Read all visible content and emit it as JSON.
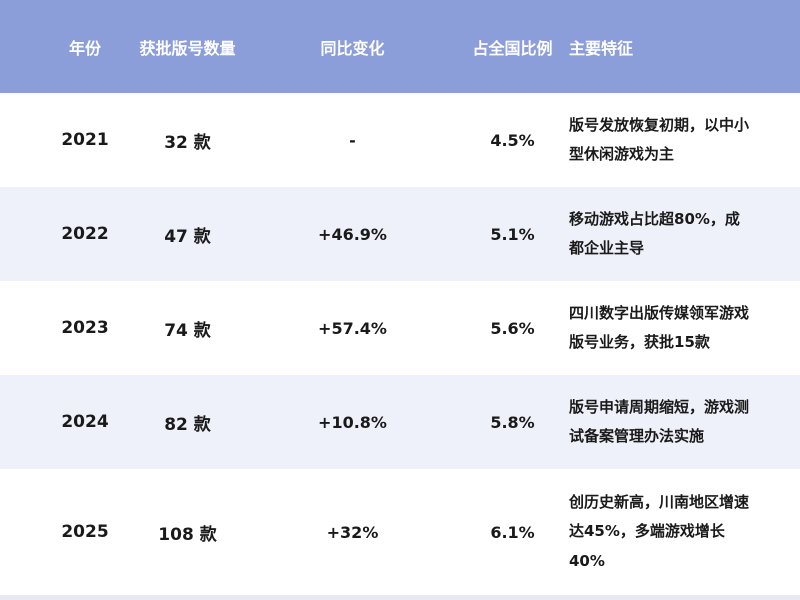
{
  "colors": {
    "header_bg": "#8C9ED9",
    "header_text": "#FFFFFF",
    "row_bg": "#FFFFFF",
    "row_alt_bg": "#EEF1F9",
    "body_text": "#1A1A1A"
  },
  "table": {
    "columns": [
      "年份",
      "获批版号数量",
      "同比变化",
      "占全国比例",
      "主要特征"
    ],
    "rows": [
      {
        "year": "2021",
        "count": "32 款",
        "yoy": "-",
        "share": "4.5%",
        "features": "版号发放恢复初期，以中小型休闲游戏为主"
      },
      {
        "year": "2022",
        "count": "47 款",
        "yoy": "+46.9%",
        "share": "5.1%",
        "features": "移动游戏占比超80%，成都企业主导"
      },
      {
        "year": "2023",
        "count": "74 款",
        "yoy": "+57.4%",
        "share": "5.6%",
        "features": "四川数字出版传媒领军游戏版号业务，获批15款"
      },
      {
        "year": "2024",
        "count": "82 款",
        "yoy": "+10.8%",
        "share": "5.8%",
        "features": "版号申请周期缩短，游戏测试备案管理办法实施"
      },
      {
        "year": "2025",
        "count": "108 款",
        "yoy": "+32%",
        "share": "6.1%",
        "features": "创历史新高，川南地区增速达45%，多端游戏增长40%"
      }
    ]
  },
  "chart_data": {
    "type": "table",
    "title": "",
    "columns": [
      "年份",
      "获批版号数量",
      "同比变化",
      "占全国比例",
      "主要特征"
    ],
    "rows": [
      [
        "2021",
        "32 款",
        "-",
        "4.5%",
        "版号发放恢复初期，以中小型休闲游戏为主"
      ],
      [
        "2022",
        "47 款",
        "+46.9%",
        "5.1%",
        "移动游戏占比超80%，成都企业主导"
      ],
      [
        "2023",
        "74 款",
        "+57.4%",
        "5.6%",
        "四川数字出版传媒领军游戏版号业务，获批15款"
      ],
      [
        "2024",
        "82 款",
        "+10.8%",
        "5.8%",
        "版号申请周期缩短，游戏测试备案管理办法实施"
      ],
      [
        "2025",
        "108 款",
        "+32%",
        "6.1%",
        "创历史新高，川南地区增速达45%，多端游戏增长40%"
      ]
    ],
    "numeric": {
      "years": [
        2021,
        2022,
        2023,
        2024,
        2025
      ],
      "approved_licenses": [
        32,
        47,
        74,
        82,
        108
      ],
      "yoy_change_pct": [
        null,
        46.9,
        57.4,
        10.8,
        32
      ],
      "national_share_pct": [
        4.5,
        5.1,
        5.6,
        5.8,
        6.1
      ]
    }
  }
}
